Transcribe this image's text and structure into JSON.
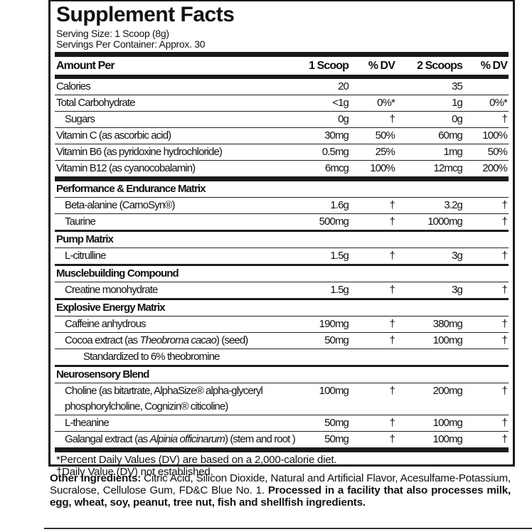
{
  "title": "Supplement Facts",
  "serving_size": "Serving Size: 1 Scoop (8g)",
  "servings_per_container": "Servings Per Container: Approx. 30",
  "header": {
    "name": "Amount Per",
    "c1": "1 Scoop",
    "c2": "% DV",
    "c3": "2 Scoops",
    "c4": "% DV"
  },
  "rows": [
    {
      "type": "item",
      "name": "Calories",
      "c1": "20",
      "c2": "",
      "c3": "35",
      "c4": ""
    },
    {
      "type": "item",
      "name": "Total Carbohydrate",
      "c1": "<1g",
      "c2": "0%*",
      "c3": "1g",
      "c4": "0%*"
    },
    {
      "type": "item",
      "indent": 1,
      "name": "Sugars",
      "c1": "0g",
      "c2": "†",
      "c3": "0g",
      "c4": "†"
    },
    {
      "type": "item",
      "name": "Vitamin C (as ascorbic acid)",
      "c1": "30mg",
      "c2": "50%",
      "c3": "60mg",
      "c4": "100%"
    },
    {
      "type": "item",
      "name": "Vitamin B6 (as pyridoxine hydrochloride)",
      "c1": "0.5mg",
      "c2": "25%",
      "c3": "1mg",
      "c4": "50%"
    },
    {
      "type": "item",
      "name": "Vitamin B12 (as cyanocobalamin)",
      "c1": "6mcg",
      "c2": "100%",
      "c3": "12mcg",
      "c4": "200%",
      "thick_after": true
    },
    {
      "type": "sec",
      "name": "Performance & Endurance Matrix"
    },
    {
      "type": "item",
      "indent": 1,
      "name": "Beta-alanine (CarnoSyn®)",
      "c1": "1.6g",
      "c2": "†",
      "c3": "3.2g",
      "c4": "†"
    },
    {
      "type": "item",
      "indent": 1,
      "name": "Taurine",
      "c1": "500mg",
      "c2": "†",
      "c3": "1000mg",
      "c4": "†"
    },
    {
      "type": "sec",
      "name": "Pump Matrix"
    },
    {
      "type": "item",
      "indent": 1,
      "name": "L-citrulline",
      "c1": "1.5g",
      "c2": "†",
      "c3": "3g",
      "c4": "†"
    },
    {
      "type": "sec",
      "name": "Musclebuilding Compound"
    },
    {
      "type": "item",
      "indent": 1,
      "name": "Creatine monohydrate",
      "c1": "1.5g",
      "c2": "†",
      "c3": "3g",
      "c4": "†"
    },
    {
      "type": "sec",
      "name": "Explosive Energy Matrix"
    },
    {
      "type": "item",
      "indent": 1,
      "name": "Caffeine anhydrous",
      "c1": "190mg",
      "c2": "†",
      "c3": "380mg",
      "c4": "†"
    },
    {
      "type": "item",
      "indent": 1,
      "name": "Cocoa extract (as Theobroma cacao) (seed)",
      "italic": "Theobroma cacao",
      "c1": "50mg",
      "c2": "†",
      "c3": "100mg",
      "c4": "†"
    },
    {
      "type": "item",
      "indent": 2,
      "name": "Standardized to 6% theobromine",
      "c1": "",
      "c2": "",
      "c3": "",
      "c4": ""
    },
    {
      "type": "sec",
      "name": "Neurosensory Blend"
    },
    {
      "type": "item",
      "indent": 1,
      "tall": true,
      "name": "Choline (as bitartrate, AlphaSize® alpha-glyceryl",
      "name2": "phosphorylcholine, Cognizin® citicoline)",
      "c1": "100mg",
      "c2": "†",
      "c3": "200mg",
      "c4": "†"
    },
    {
      "type": "item",
      "indent": 1,
      "name": "L-theanine",
      "c1": "50mg",
      "c2": "†",
      "c3": "100mg",
      "c4": "†"
    },
    {
      "type": "item",
      "indent": 1,
      "name": "Galangal extract (as Alpinia officinarum) (stem and root )",
      "italic": "Alpinia officinarum",
      "c1": "50mg",
      "c2": "†",
      "c3": "100mg",
      "c4": "†",
      "thick_after": true
    }
  ],
  "footnote_dv": "*Percent Daily Values (DV) are based on a 2,000-calorie diet.",
  "footnote_dagger": "†Daily Value (DV) not established.",
  "other": {
    "label": "Other Ingredients:",
    "text": " Citric Acid, Silicon Dioxide, Natural and Artificial Flavor, Acesulfame-Potassium, Sucralose, Cellulose Gum, FD&C Blue No. 1. ",
    "allergen": "Processed in a facility that also processes milk, egg, wheat, soy, peanut, tree nut, fish and shellfish ingredients."
  }
}
